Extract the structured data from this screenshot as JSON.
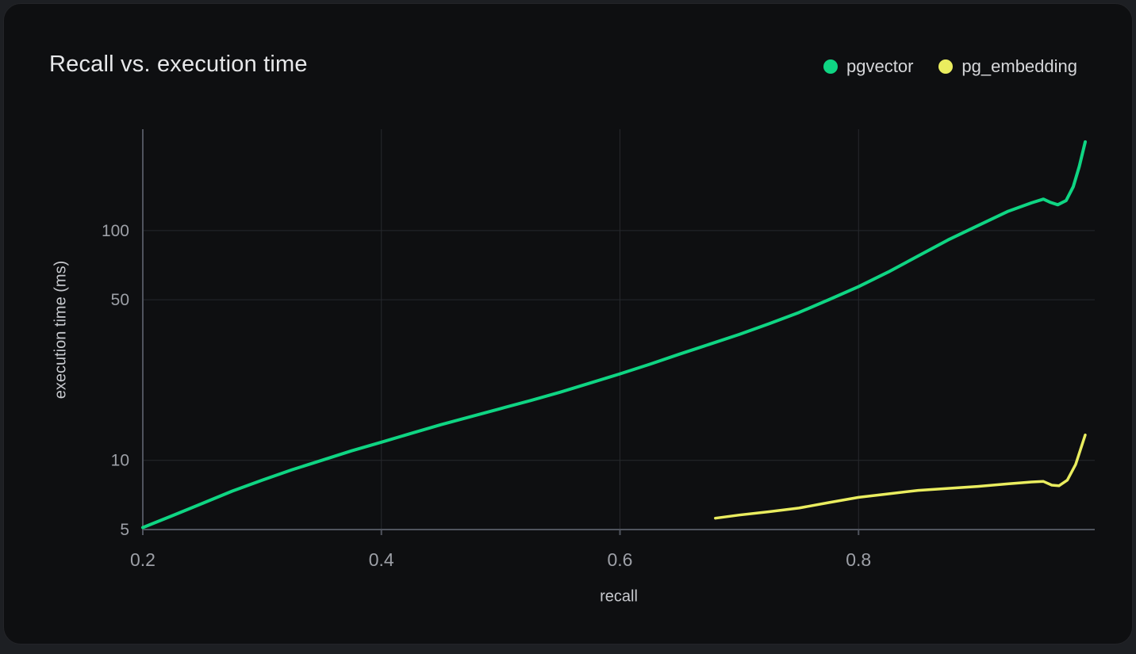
{
  "header": {
    "title": "Recall vs. execution time"
  },
  "theme": {
    "page_bg": "#1d1f23",
    "card_bg": "#0e0f11",
    "card_border": "#232428",
    "title_color": "#e7e8ea",
    "legend_color": "#d6d7da",
    "tick_color": "#9da0a7",
    "axis_title_color": "#c7c9ce",
    "grid_color": "#26282d",
    "axis_color": "#50545e"
  },
  "chart_data": {
    "type": "line",
    "title": "Recall vs. execution time",
    "xlabel": "recall",
    "ylabel": "execution time (ms)",
    "x_scale": "linear",
    "y_scale": "log",
    "xlim": [
      0.2,
      0.998
    ],
    "ylim": [
      5,
      276
    ],
    "xticks": [
      0.2,
      0.4,
      0.6,
      0.8
    ],
    "yticks": [
      5,
      10,
      50,
      100
    ],
    "grid": true,
    "legend_position": "top-right",
    "series": [
      {
        "name": "pgvector",
        "color": "#0fd583",
        "width": 4,
        "points": [
          [
            0.2,
            5.1
          ],
          [
            0.225,
            5.75
          ],
          [
            0.25,
            6.5
          ],
          [
            0.275,
            7.35
          ],
          [
            0.3,
            8.2
          ],
          [
            0.325,
            9.1
          ],
          [
            0.35,
            10.0
          ],
          [
            0.375,
            11.0
          ],
          [
            0.4,
            12.0
          ],
          [
            0.425,
            13.1
          ],
          [
            0.45,
            14.3
          ],
          [
            0.475,
            15.5
          ],
          [
            0.5,
            16.8
          ],
          [
            0.525,
            18.2
          ],
          [
            0.55,
            19.8
          ],
          [
            0.575,
            21.7
          ],
          [
            0.6,
            23.8
          ],
          [
            0.625,
            26.2
          ],
          [
            0.65,
            29.0
          ],
          [
            0.675,
            32.0
          ],
          [
            0.7,
            35.3
          ],
          [
            0.725,
            39.3
          ],
          [
            0.75,
            44.0
          ],
          [
            0.775,
            50.0
          ],
          [
            0.8,
            57.0
          ],
          [
            0.825,
            66.0
          ],
          [
            0.85,
            77.5
          ],
          [
            0.875,
            91.0
          ],
          [
            0.9,
            105.0
          ],
          [
            0.925,
            121.0
          ],
          [
            0.945,
            132.0
          ],
          [
            0.955,
            137.0
          ],
          [
            0.961,
            132.5
          ],
          [
            0.967,
            129.5
          ],
          [
            0.974,
            135.0
          ],
          [
            0.98,
            155.0
          ],
          [
            0.985,
            190.0
          ],
          [
            0.99,
            243.0
          ]
        ]
      },
      {
        "name": "pg_embedding",
        "color": "#eaed5f",
        "width": 3.5,
        "points": [
          [
            0.68,
            5.6
          ],
          [
            0.7,
            5.78
          ],
          [
            0.725,
            5.98
          ],
          [
            0.75,
            6.2
          ],
          [
            0.775,
            6.55
          ],
          [
            0.8,
            6.9
          ],
          [
            0.825,
            7.15
          ],
          [
            0.85,
            7.4
          ],
          [
            0.875,
            7.55
          ],
          [
            0.9,
            7.7
          ],
          [
            0.925,
            7.9
          ],
          [
            0.945,
            8.05
          ],
          [
            0.955,
            8.1
          ],
          [
            0.962,
            7.8
          ],
          [
            0.968,
            7.75
          ],
          [
            0.975,
            8.2
          ],
          [
            0.982,
            9.6
          ],
          [
            0.99,
            12.9
          ]
        ]
      }
    ]
  }
}
